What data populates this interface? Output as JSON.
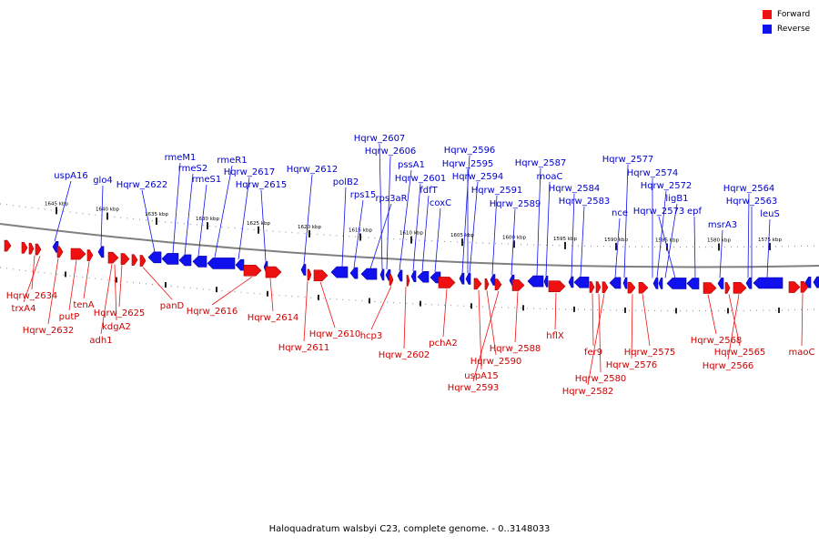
{
  "legend": [
    {
      "label": "Forward",
      "color": "#ee1111"
    },
    {
      "label": "Reverse",
      "color": "#1111ee"
    }
  ],
  "caption": "Haloquadratum walsbyi C23, complete genome. - 0..3148033",
  "colors": {
    "forward": "#ee1111",
    "reverse": "#1111ee",
    "backbone": "#808080"
  },
  "scale_labels": [
    "1645 kbp",
    "1640 kbp",
    "1635 kbp",
    "1630 kbp",
    "1625 kbp",
    "1620 kbp",
    "1615 kbp",
    "1610 kbp",
    "1605 kbp",
    "1600 kbp",
    "1595 kbp",
    "1590 kbp",
    "1585 kbp",
    "1580 kbp",
    "1575 kbp"
  ],
  "reverse_labels": [
    "uspA16",
    "glo4",
    "Hqrw_2622",
    "rmeM1",
    "rmeS2",
    "rmeS1",
    "rmeR1",
    "Hqrw_2617",
    "Hqrw_2615",
    "Hqrw_2612",
    "polB2",
    "rps15",
    "rps3aR",
    "Hqrw_2607",
    "Hqrw_2606",
    "pssA1",
    "Hqrw_2601",
    "fdfT",
    "coxC",
    "Hqrw_2596",
    "Hqrw_2595",
    "Hqrw_2594",
    "Hqrw_2591",
    "Hqrw_2589",
    "Hqrw_2587",
    "moaC",
    "Hqrw_2584",
    "Hqrw_2583",
    "nce",
    "Hqrw_2577",
    "Hqrw_2574",
    "Hqrw_2572",
    "ligB1",
    "Hqrw_2573",
    "epf",
    "msrA3",
    "Hqrw_2564",
    "Hqrw_2563",
    "leuS"
  ],
  "forward_labels": [
    "Hqrw_2634",
    "trxA4",
    "Hqrw_2632",
    "putP",
    "tenA",
    "Hqrw_2625",
    "kdgA2",
    "adh1",
    "panD",
    "Hqrw_2616",
    "Hqrw_2614",
    "Hqrw_2610",
    "Hqrw_2611",
    "hcp3",
    "Hqrw_2602",
    "pchA2",
    "Hqrw_2588",
    "Hqrw_2590",
    "uspA15",
    "Hqrw_2593",
    "hflX",
    "fer9",
    "Hqrw_2580",
    "Hqrw_2582",
    "Hqrw_2575",
    "Hqrw_2576",
    "Hqrw_2568",
    "Hqrw_2565",
    "Hqrw_2566",
    "maoC"
  ]
}
